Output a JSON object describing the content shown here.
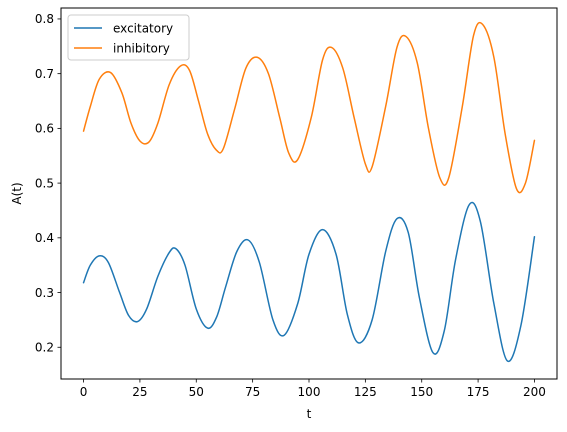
{
  "chart_data": {
    "type": "line",
    "xlabel": "t",
    "ylabel": "A(t)",
    "xlim": [
      -10,
      210
    ],
    "ylim": [
      0.142,
      0.82
    ],
    "xticks": [
      0,
      25,
      50,
      75,
      100,
      125,
      150,
      175,
      200
    ],
    "xtick_labels": [
      "0",
      "25",
      "50",
      "75",
      "100",
      "125",
      "150",
      "175",
      "200"
    ],
    "yticks": [
      0.2,
      0.3,
      0.4,
      0.5,
      0.6,
      0.7,
      0.8
    ],
    "ytick_labels": [
      "0.2",
      "0.3",
      "0.4",
      "0.5",
      "0.6",
      "0.7",
      "0.8"
    ],
    "grid": false,
    "legend": "top-left",
    "series": [
      {
        "name": "excitatory",
        "color": "#1f77b4",
        "x": [
          0,
          3,
          7,
          11,
          16,
          20,
          24,
          28,
          33,
          38,
          41,
          45,
          50,
          55,
          59,
          63,
          68,
          73,
          78,
          84,
          89,
          95,
          100,
          106,
          112,
          117,
          122,
          128,
          134,
          139,
          144,
          149,
          155,
          160,
          165,
          171,
          176,
          182,
          188,
          194,
          200
        ],
        "y": [
          0.318,
          0.35,
          0.367,
          0.355,
          0.3,
          0.258,
          0.247,
          0.27,
          0.33,
          0.373,
          0.38,
          0.35,
          0.27,
          0.235,
          0.255,
          0.31,
          0.375,
          0.396,
          0.355,
          0.25,
          0.222,
          0.28,
          0.37,
          0.415,
          0.37,
          0.26,
          0.208,
          0.25,
          0.375,
          0.435,
          0.41,
          0.29,
          0.19,
          0.23,
          0.36,
          0.46,
          0.43,
          0.28,
          0.175,
          0.24,
          0.402
        ]
      },
      {
        "name": "inhibitory",
        "color": "#ff7f0e",
        "x": [
          0,
          3,
          7,
          12,
          17,
          21,
          25,
          29,
          33,
          38,
          43,
          47,
          51,
          55,
          59,
          62,
          67,
          72,
          77,
          82,
          87,
          91,
          95,
          101,
          106,
          110,
          115,
          120,
          125,
          128,
          134,
          139,
          143,
          148,
          153,
          158,
          162,
          168,
          173,
          177,
          182,
          187,
          192,
          196,
          200
        ],
        "y": [
          0.595,
          0.64,
          0.69,
          0.702,
          0.665,
          0.61,
          0.577,
          0.575,
          0.61,
          0.68,
          0.714,
          0.706,
          0.65,
          0.59,
          0.56,
          0.563,
          0.635,
          0.71,
          0.73,
          0.7,
          0.62,
          0.555,
          0.543,
          0.62,
          0.725,
          0.748,
          0.71,
          0.62,
          0.535,
          0.53,
          0.64,
          0.748,
          0.768,
          0.72,
          0.6,
          0.51,
          0.51,
          0.64,
          0.77,
          0.79,
          0.73,
          0.59,
          0.49,
          0.5,
          0.578
        ]
      }
    ]
  }
}
